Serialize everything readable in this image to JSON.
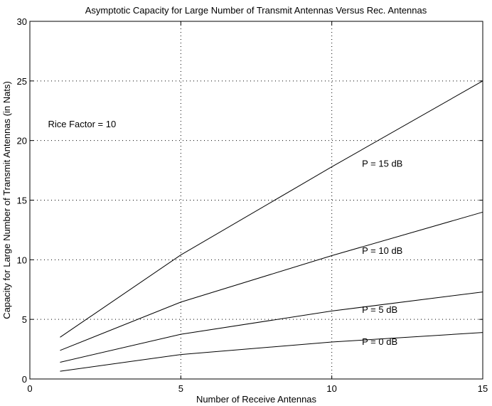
{
  "chart_data": {
    "type": "line",
    "title": "Asymptotic Capacity for Large Number of Transmit Antennas Versus Rec. Antennas",
    "xlabel": "Number of Receive Antennas",
    "ylabel": "Capacity for Large Number of Transmit Antennas (in Nats)",
    "xlim": [
      0,
      15
    ],
    "ylim": [
      0,
      30
    ],
    "xticks": [
      0,
      5,
      10,
      15
    ],
    "yticks": [
      0,
      5,
      10,
      15,
      20,
      25,
      30
    ],
    "grid": true,
    "grid_style": "dotted",
    "x": [
      1,
      5,
      10,
      15
    ],
    "series": [
      {
        "name": "P = 15 dB",
        "values": [
          3.5,
          10.4,
          17.8,
          25.0
        ]
      },
      {
        "name": "P = 10 dB",
        "values": [
          2.4,
          6.45,
          10.35,
          14.0
        ]
      },
      {
        "name": "P = 5 dB",
        "values": [
          1.4,
          3.75,
          5.7,
          7.3
        ]
      },
      {
        "name": "P = 0 dB",
        "values": [
          0.65,
          2.05,
          3.1,
          3.9
        ]
      }
    ],
    "line_color": "#000000",
    "annotations": [
      {
        "text": "Rice Factor = 10",
        "x": 0.6,
        "y": 21.1
      },
      {
        "text": "P = 15 dB",
        "x": 11.0,
        "y": 17.8
      },
      {
        "text": "P = 10 dB",
        "x": 11.0,
        "y": 10.5
      },
      {
        "text": "P = 5 dB",
        "x": 11.0,
        "y": 5.55
      },
      {
        "text": "P = 0 dB",
        "x": 11.0,
        "y": 2.85
      }
    ]
  }
}
